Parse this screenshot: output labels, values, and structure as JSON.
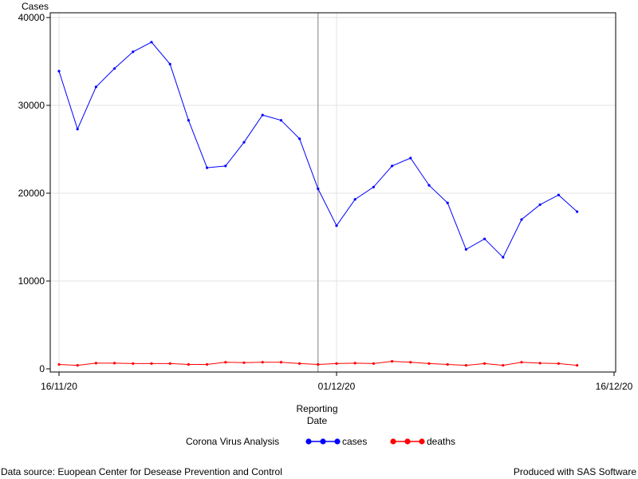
{
  "chart_data": {
    "type": "line",
    "title": "",
    "ylabel": "Cases",
    "xlabel_lines": [
      "Reporting",
      "Date"
    ],
    "ylim": [
      0,
      40000
    ],
    "yticks": [
      0,
      10000,
      20000,
      30000,
      40000
    ],
    "xlim": [
      "2020-11-16",
      "2020-12-16"
    ],
    "xticks": [
      {
        "date": "2020-11-16",
        "label": "16/11/20"
      },
      {
        "date": "2020-12-01",
        "label": "01/12/20"
      },
      {
        "date": "2020-12-16",
        "label": "16/12/20"
      }
    ],
    "reference_line_date": "2020-11-30",
    "x": [
      "2020-11-16",
      "2020-11-17",
      "2020-11-18",
      "2020-11-19",
      "2020-11-20",
      "2020-11-21",
      "2020-11-22",
      "2020-11-23",
      "2020-11-24",
      "2020-11-25",
      "2020-11-26",
      "2020-11-27",
      "2020-11-28",
      "2020-11-29",
      "2020-11-30",
      "2020-12-01",
      "2020-12-02",
      "2020-12-03",
      "2020-12-04",
      "2020-12-05",
      "2020-12-06",
      "2020-12-07",
      "2020-12-08",
      "2020-12-09",
      "2020-12-10",
      "2020-12-11",
      "2020-12-12",
      "2020-12-13",
      "2020-12-14"
    ],
    "series": [
      {
        "name": "cases",
        "color": "#0000ff",
        "values": [
          33900,
          27300,
          32100,
          34200,
          36100,
          37200,
          34700,
          28300,
          22900,
          23100,
          25800,
          28900,
          28300,
          26200,
          20500,
          16300,
          19300,
          20700,
          23100,
          24000,
          20900,
          18900,
          13600,
          14800,
          12700,
          17000,
          18700,
          19800,
          17900
        ]
      },
      {
        "name": "deaths",
        "color": "#ff0000",
        "values": [
          500,
          400,
          650,
          650,
          600,
          600,
          600,
          500,
          500,
          750,
          700,
          750,
          750,
          600,
          500,
          600,
          650,
          600,
          850,
          750,
          600,
          500,
          400,
          600,
          400,
          750,
          650,
          600,
          400
        ]
      }
    ],
    "legend": {
      "title": "Corona Virus Analysis",
      "position": "bottom"
    },
    "grid": true
  },
  "footnotes": {
    "left": "Data source: Euopean Center for Desease Prevention and Control",
    "right": "Produced with SAS Software"
  }
}
